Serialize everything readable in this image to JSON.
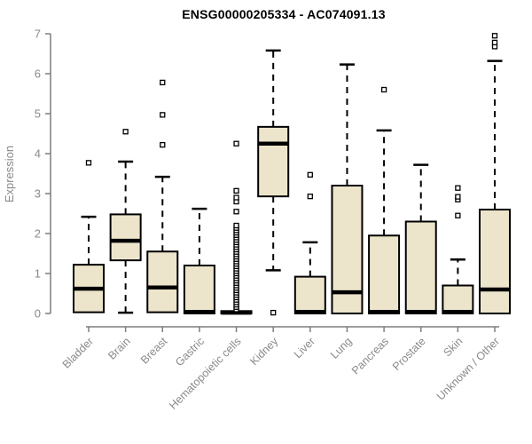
{
  "chart_data": {
    "type": "boxplot",
    "title": "ENSG00000205334 - AC074091.13",
    "xlabel": "",
    "ylabel": "Expression",
    "ylim": [
      0,
      7
    ],
    "yticks": [
      0,
      1,
      2,
      3,
      4,
      5,
      6,
      7
    ],
    "grid": false,
    "legend": "none",
    "categories": [
      "Bladder",
      "Brain",
      "Breast",
      "Gastric",
      "Hematopoietic cells",
      "Kidney",
      "Liver",
      "Lung",
      "Pancreas",
      "Prostate",
      "Skin",
      "Unknown / Other"
    ],
    "series": [
      {
        "name": "Bladder",
        "whisker_low": 0.03,
        "q1": 0.03,
        "median": 0.62,
        "q3": 1.22,
        "whisker_high": 2.42,
        "outliers": [
          3.77
        ]
      },
      {
        "name": "Brain",
        "whisker_low": 0.02,
        "q1": 1.33,
        "median": 1.82,
        "q3": 2.48,
        "whisker_high": 3.8,
        "outliers": [
          4.55
        ]
      },
      {
        "name": "Breast",
        "whisker_low": 0.03,
        "q1": 0.03,
        "median": 0.65,
        "q3": 1.55,
        "whisker_high": 3.42,
        "outliers": [
          4.22,
          4.97,
          5.78
        ]
      },
      {
        "name": "Gastric",
        "whisker_low": 0.0,
        "q1": 0.0,
        "median": 0.04,
        "q3": 1.2,
        "whisker_high": 2.62,
        "outliers": []
      },
      {
        "name": "Hematopoietic cells",
        "whisker_low": 0.0,
        "q1": 0.0,
        "median": 0.02,
        "q3": 0.06,
        "whisker_high": 0.06,
        "outliers": [
          0.1,
          0.16,
          0.22,
          0.28,
          0.34,
          0.4,
          0.46,
          0.52,
          0.58,
          0.64,
          0.7,
          0.76,
          0.82,
          0.88,
          0.94,
          1.0,
          1.06,
          1.12,
          1.18,
          1.24,
          1.3,
          1.36,
          1.42,
          1.48,
          1.54,
          1.6,
          1.66,
          1.72,
          1.78,
          1.84,
          1.9,
          1.96,
          2.02,
          2.08,
          2.14,
          2.2,
          2.55,
          2.8,
          2.9,
          3.07,
          4.25
        ]
      },
      {
        "name": "Kidney",
        "whisker_low": 1.08,
        "q1": 2.93,
        "median": 4.25,
        "q3": 4.67,
        "whisker_high": 6.58,
        "outliers": [
          0.02
        ]
      },
      {
        "name": "Liver",
        "whisker_low": 0.0,
        "q1": 0.0,
        "median": 0.04,
        "q3": 0.92,
        "whisker_high": 1.78,
        "outliers": [
          2.93,
          3.47
        ]
      },
      {
        "name": "Lung",
        "whisker_low": 0.0,
        "q1": 0.0,
        "median": 0.53,
        "q3": 3.2,
        "whisker_high": 6.23,
        "outliers": []
      },
      {
        "name": "Pancreas",
        "whisker_low": 0.0,
        "q1": 0.0,
        "median": 0.04,
        "q3": 1.95,
        "whisker_high": 4.58,
        "outliers": [
          5.6
        ]
      },
      {
        "name": "Prostate",
        "whisker_low": 0.0,
        "q1": 0.0,
        "median": 0.04,
        "q3": 2.3,
        "whisker_high": 3.72,
        "outliers": []
      },
      {
        "name": "Skin",
        "whisker_low": 0.0,
        "q1": 0.0,
        "median": 0.04,
        "q3": 0.7,
        "whisker_high": 1.35,
        "outliers": [
          2.45,
          2.85,
          2.92,
          3.14
        ]
      },
      {
        "name": "Unknown / Other",
        "whisker_low": 0.0,
        "q1": 0.0,
        "median": 0.6,
        "q3": 2.6,
        "whisker_high": 6.32,
        "outliers": [
          6.68,
          6.78,
          6.95
        ]
      }
    ],
    "colors": {
      "box_fill": "#ece5cc",
      "box_stroke": "#000000",
      "median": "#000000",
      "whisker": "#000000",
      "outlier_stroke": "#000000",
      "outlier_fill": "#ffffff",
      "axis_line": "#7d7d7d",
      "tick_label": "#8a8a8a",
      "title": "#000000",
      "background": "#ffffff"
    }
  }
}
